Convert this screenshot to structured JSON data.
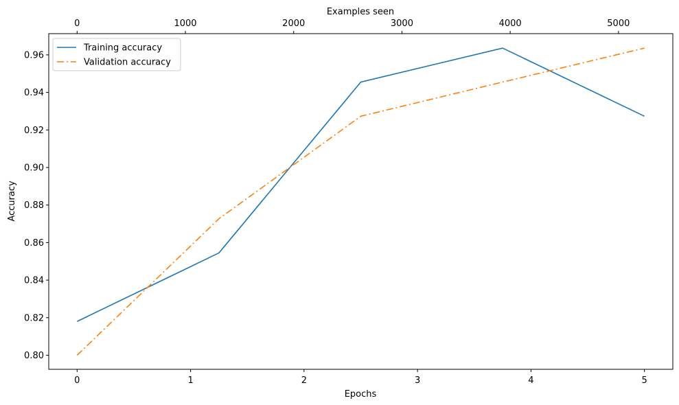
{
  "chart_data": {
    "type": "line",
    "xlabel": "Epochs",
    "ylabel": "Accuracy",
    "top_xlabel": "Examples seen",
    "xlim": [
      -0.25,
      5.25
    ],
    "ylim": [
      0.7925,
      0.9713
    ],
    "top_xlim": [
      -262,
      5502
    ],
    "x_ticks": [
      0,
      1,
      2,
      3,
      4,
      5
    ],
    "y_ticks": [
      0.8,
      0.82,
      0.84,
      0.86,
      0.88,
      0.9,
      0.92,
      0.94,
      0.96
    ],
    "top_x_ticks": [
      0,
      1000,
      2000,
      3000,
      4000,
      5000
    ],
    "x_tick_labels": [
      "0",
      "1",
      "2",
      "3",
      "4",
      "5"
    ],
    "y_tick_labels": [
      "0.80",
      "0.82",
      "0.84",
      "0.86",
      "0.88",
      "0.90",
      "0.92",
      "0.94",
      "0.96"
    ],
    "top_x_tick_labels": [
      "0",
      "1000",
      "2000",
      "3000",
      "4000",
      "5000"
    ],
    "x": [
      0,
      1.25,
      2.5,
      3.75,
      5.0
    ],
    "series": [
      {
        "name": "Training accuracy",
        "values": [
          0.818,
          0.8545,
          0.9455,
          0.9636,
          0.9273
        ],
        "color": "#1f77b4",
        "linestyle": "solid"
      },
      {
        "name": "Validation accuracy",
        "values": [
          0.8,
          0.8727,
          0.9273,
          0.9455,
          0.9636
        ],
        "color": "#ff7f0e",
        "linestyle": "dashdot"
      }
    ],
    "legend_position": "top-left",
    "grid": false
  }
}
